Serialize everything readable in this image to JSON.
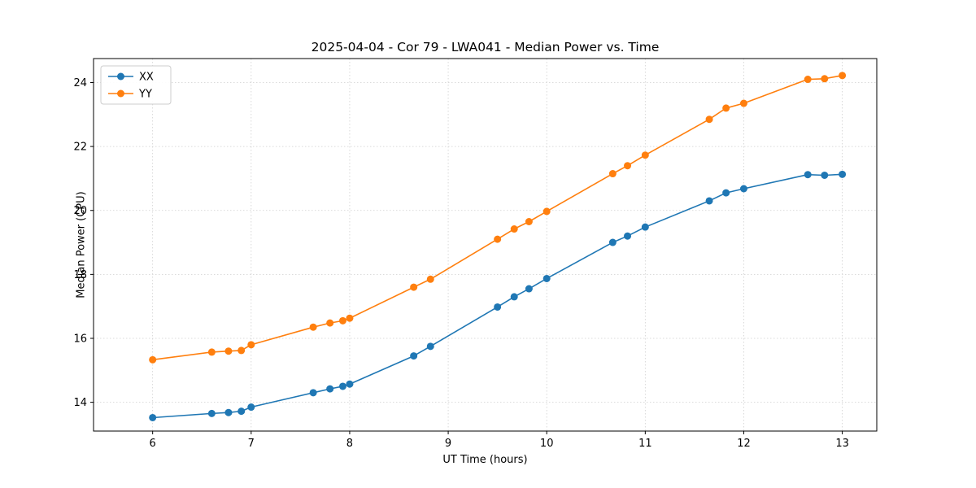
{
  "chart_data": {
    "type": "line",
    "title": "2025-04-04 - Cor 79 - LWA041 - Median Power vs. Time",
    "xlabel": "UT Time (hours)",
    "ylabel": "Median Power (CPU)",
    "xlim": [
      5.4,
      13.35
    ],
    "ylim": [
      13.1,
      24.75
    ],
    "xticks": [
      6,
      7,
      8,
      9,
      10,
      11,
      12,
      13
    ],
    "yticks": [
      14,
      16,
      18,
      20,
      22,
      24
    ],
    "grid": true,
    "legend_position": "upper left",
    "x": [
      6.0,
      6.6,
      6.77,
      6.9,
      7.0,
      7.63,
      7.8,
      7.93,
      8.0,
      8.65,
      8.82,
      9.5,
      9.67,
      9.82,
      10.0,
      10.67,
      10.82,
      11.0,
      11.65,
      11.82,
      12.0,
      12.65,
      12.82,
      13.0
    ],
    "series": [
      {
        "name": "XX",
        "color": "#1f77b4",
        "values": [
          13.52,
          13.65,
          13.68,
          13.72,
          13.85,
          14.3,
          14.42,
          14.5,
          14.57,
          15.45,
          15.75,
          16.98,
          17.3,
          17.55,
          17.87,
          19.0,
          19.2,
          19.48,
          20.3,
          20.55,
          20.68,
          21.12,
          21.1,
          21.13
        ]
      },
      {
        "name": "YY",
        "color": "#ff7f0e",
        "values": [
          15.33,
          15.57,
          15.6,
          15.62,
          15.8,
          16.35,
          16.48,
          16.55,
          16.63,
          17.6,
          17.85,
          19.1,
          19.42,
          19.65,
          19.97,
          21.15,
          21.4,
          21.73,
          22.85,
          23.2,
          23.35,
          24.1,
          24.12,
          24.22
        ]
      }
    ],
    "style": {
      "grid_color": "#cfcfcf",
      "spine_color": "#000000",
      "tick_label_color": "#000000",
      "legend_border_color": "#cccccc"
    }
  }
}
